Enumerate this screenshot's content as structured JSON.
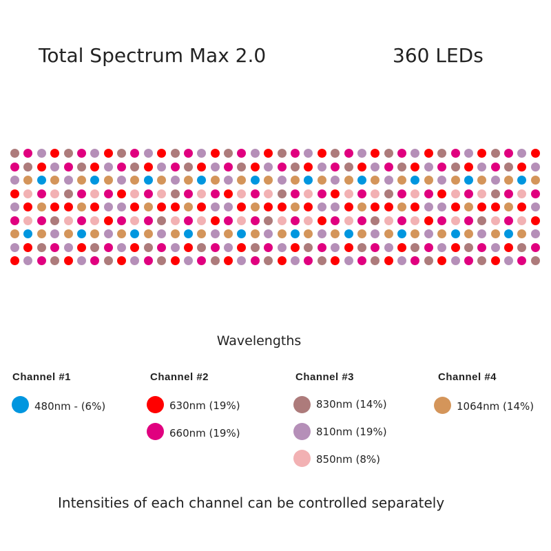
{
  "title": "Total Spectrum Max 2.0",
  "led_count": "360 LEDs",
  "wavelengths_heading": "Wavelengths",
  "footer": "Intensities of each channel can be controlled separately",
  "colors": {
    "R": "#ff0000",
    "M": "#e0007f",
    "B": "#ad7b7b",
    "L": "#b58fb8",
    "P": "#f2b1b3",
    "O": "#d4955a",
    "C": "#0096df"
  },
  "color_key": {
    "C": "480nm",
    "R": "630nm",
    "M": "660nm",
    "B": "830nm",
    "L": "810nm",
    "P": "850nm",
    "O": "1064nm"
  },
  "grid_rows": [
    "BMLRBMLRBMLRBMLRBMLRBMLRBMLRBMLRBMLRBMLR",
    "MBRLMBRLMBRLMBRLMBRLMBRLMBRLMBRLMBRLMBRL",
    "LOCOLOCOLOCOLOCOLOCOLOCOLOCOLOCOLOCOLOCO",
    "RPMPBMPMRPMPBMPMRPMPBMPMRPMPBMPMRPMPBMPM",
    "LRORRORLLRORRORLLRORRORLLRORRORLLRORRORL",
    "MPMBPMPRMPMBPMPRMPMBPMPRMPMBPMPRMPMBPMPR",
    "OCOLOCOLOCOLOCOLOCOLOCOLOCOLOCOLOCOLOCOL",
    "LRBMLRBMLRBMLRBMLRBMLRBMLRBMLRBMLRBMLRBM",
    "RLMBRLMBRLMBRLMBRLMBRLMBRLMBRLMBRLMBRLMB"
  ],
  "channels": [
    {
      "name": "Channel #1",
      "items": [
        {
          "label": "480nm - (6%)",
          "color": "#0096df"
        }
      ]
    },
    {
      "name": "Channel #2",
      "items": [
        {
          "label": "630nm (19%)",
          "color": "#ff0000"
        },
        {
          "label": "660nm (19%)",
          "color": "#e0007f"
        }
      ]
    },
    {
      "name": "Channel #3",
      "items": [
        {
          "label": "830nm (14%)",
          "color": "#ad7b7b"
        },
        {
          "label": "810nm (19%)",
          "color": "#b58fb8"
        },
        {
          "label": "850nm (8%)",
          "color": "#f2b1b3"
        }
      ]
    },
    {
      "name": "Channel #4",
      "items": [
        {
          "label": "1064nm (14%)",
          "color": "#d4955a"
        }
      ]
    }
  ]
}
